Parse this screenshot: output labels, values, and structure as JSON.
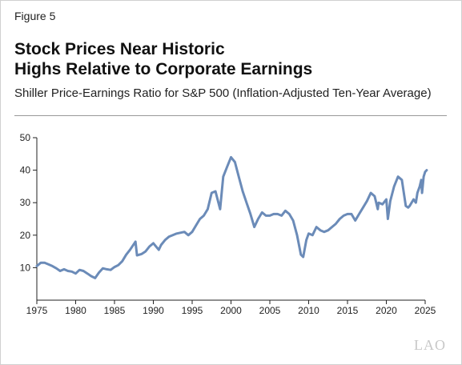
{
  "figure_label": "Figure 5",
  "title_line1": "Stock Prices Near Historic",
  "title_line2": "Highs Relative to Corporate Earnings",
  "subtitle": "Shiller Price-Earnings Ratio for S&P 500 (Inflation-Adjusted Ten-Year Average)",
  "logo": "LAO",
  "colors": {
    "line": "#6b8bb8",
    "axis": "#222222",
    "rule": "#999999"
  },
  "chart_data": {
    "type": "line",
    "title": "",
    "xlabel": "",
    "ylabel": "",
    "xlim": [
      1975,
      2025
    ],
    "ylim": [
      0,
      50
    ],
    "x_ticks": [
      1975,
      1980,
      1985,
      1990,
      1995,
      2000,
      2005,
      2010,
      2015,
      2020,
      2025
    ],
    "y_ticks": [
      10,
      20,
      30,
      40,
      50
    ],
    "grid": false,
    "legend": "none",
    "series": [
      {
        "name": "",
        "points": [
          [
            1975.0,
            10.5
          ],
          [
            1975.5,
            11.5
          ],
          [
            1976.0,
            11.5
          ],
          [
            1976.5,
            11.0
          ],
          [
            1977.0,
            10.5
          ],
          [
            1977.5,
            9.8
          ],
          [
            1978.0,
            9.0
          ],
          [
            1978.5,
            9.5
          ],
          [
            1979.0,
            9.0
          ],
          [
            1979.5,
            8.8
          ],
          [
            1980.0,
            8.2
          ],
          [
            1980.5,
            9.3
          ],
          [
            1981.0,
            9.0
          ],
          [
            1981.5,
            8.2
          ],
          [
            1982.0,
            7.4
          ],
          [
            1982.5,
            6.8
          ],
          [
            1983.0,
            8.5
          ],
          [
            1983.5,
            9.8
          ],
          [
            1984.0,
            9.5
          ],
          [
            1984.5,
            9.3
          ],
          [
            1985.0,
            10.2
          ],
          [
            1985.5,
            10.8
          ],
          [
            1986.0,
            12.0
          ],
          [
            1986.5,
            14.0
          ],
          [
            1987.0,
            15.5
          ],
          [
            1987.7,
            18.0
          ],
          [
            1987.9,
            13.8
          ],
          [
            1988.5,
            14.2
          ],
          [
            1989.0,
            15.0
          ],
          [
            1989.5,
            16.5
          ],
          [
            1990.0,
            17.5
          ],
          [
            1990.7,
            15.5
          ],
          [
            1991.0,
            17.0
          ],
          [
            1991.5,
            18.5
          ],
          [
            1992.0,
            19.5
          ],
          [
            1993.0,
            20.5
          ],
          [
            1994.0,
            21.0
          ],
          [
            1994.5,
            20.0
          ],
          [
            1995.0,
            21.0
          ],
          [
            1995.5,
            23.0
          ],
          [
            1996.0,
            25.0
          ],
          [
            1996.5,
            26.0
          ],
          [
            1997.0,
            28.0
          ],
          [
            1997.5,
            33.0
          ],
          [
            1998.0,
            33.5
          ],
          [
            1998.6,
            28.0
          ],
          [
            1999.0,
            38.0
          ],
          [
            1999.5,
            41.0
          ],
          [
            2000.0,
            44.0
          ],
          [
            2000.5,
            42.5
          ],
          [
            2001.0,
            38.0
          ],
          [
            2001.5,
            33.5
          ],
          [
            2002.0,
            30.0
          ],
          [
            2002.5,
            26.5
          ],
          [
            2003.0,
            22.5
          ],
          [
            2003.5,
            25.0
          ],
          [
            2004.0,
            27.0
          ],
          [
            2004.5,
            26.0
          ],
          [
            2005.0,
            26.0
          ],
          [
            2005.5,
            26.5
          ],
          [
            2006.0,
            26.5
          ],
          [
            2006.5,
            26.0
          ],
          [
            2007.0,
            27.5
          ],
          [
            2007.5,
            26.5
          ],
          [
            2008.0,
            24.5
          ],
          [
            2008.5,
            20.0
          ],
          [
            2009.0,
            14.0
          ],
          [
            2009.3,
            13.3
          ],
          [
            2009.7,
            18.5
          ],
          [
            2010.0,
            20.5
          ],
          [
            2010.5,
            20.0
          ],
          [
            2011.0,
            22.5
          ],
          [
            2011.5,
            21.5
          ],
          [
            2012.0,
            21.0
          ],
          [
            2012.5,
            21.5
          ],
          [
            2013.0,
            22.5
          ],
          [
            2013.5,
            23.5
          ],
          [
            2014.0,
            25.0
          ],
          [
            2014.5,
            26.0
          ],
          [
            2015.0,
            26.5
          ],
          [
            2015.5,
            26.5
          ],
          [
            2016.0,
            24.5
          ],
          [
            2016.5,
            26.5
          ],
          [
            2017.0,
            28.5
          ],
          [
            2017.5,
            30.5
          ],
          [
            2018.0,
            33.0
          ],
          [
            2018.5,
            32.0
          ],
          [
            2018.9,
            28.0
          ],
          [
            2019.0,
            30.0
          ],
          [
            2019.5,
            29.5
          ],
          [
            2020.0,
            31.0
          ],
          [
            2020.2,
            25.0
          ],
          [
            2020.5,
            30.5
          ],
          [
            2021.0,
            35.0
          ],
          [
            2021.5,
            38.0
          ],
          [
            2022.0,
            37.0
          ],
          [
            2022.5,
            29.0
          ],
          [
            2022.8,
            28.5
          ],
          [
            2023.0,
            29.0
          ],
          [
            2023.5,
            31.0
          ],
          [
            2023.8,
            30.0
          ],
          [
            2024.0,
            33.0
          ],
          [
            2024.3,
            35.0
          ],
          [
            2024.5,
            37.0
          ],
          [
            2024.6,
            33.0
          ],
          [
            2024.8,
            38.0
          ],
          [
            2025.0,
            39.5
          ],
          [
            2025.2,
            40.0
          ]
        ]
      }
    ]
  }
}
